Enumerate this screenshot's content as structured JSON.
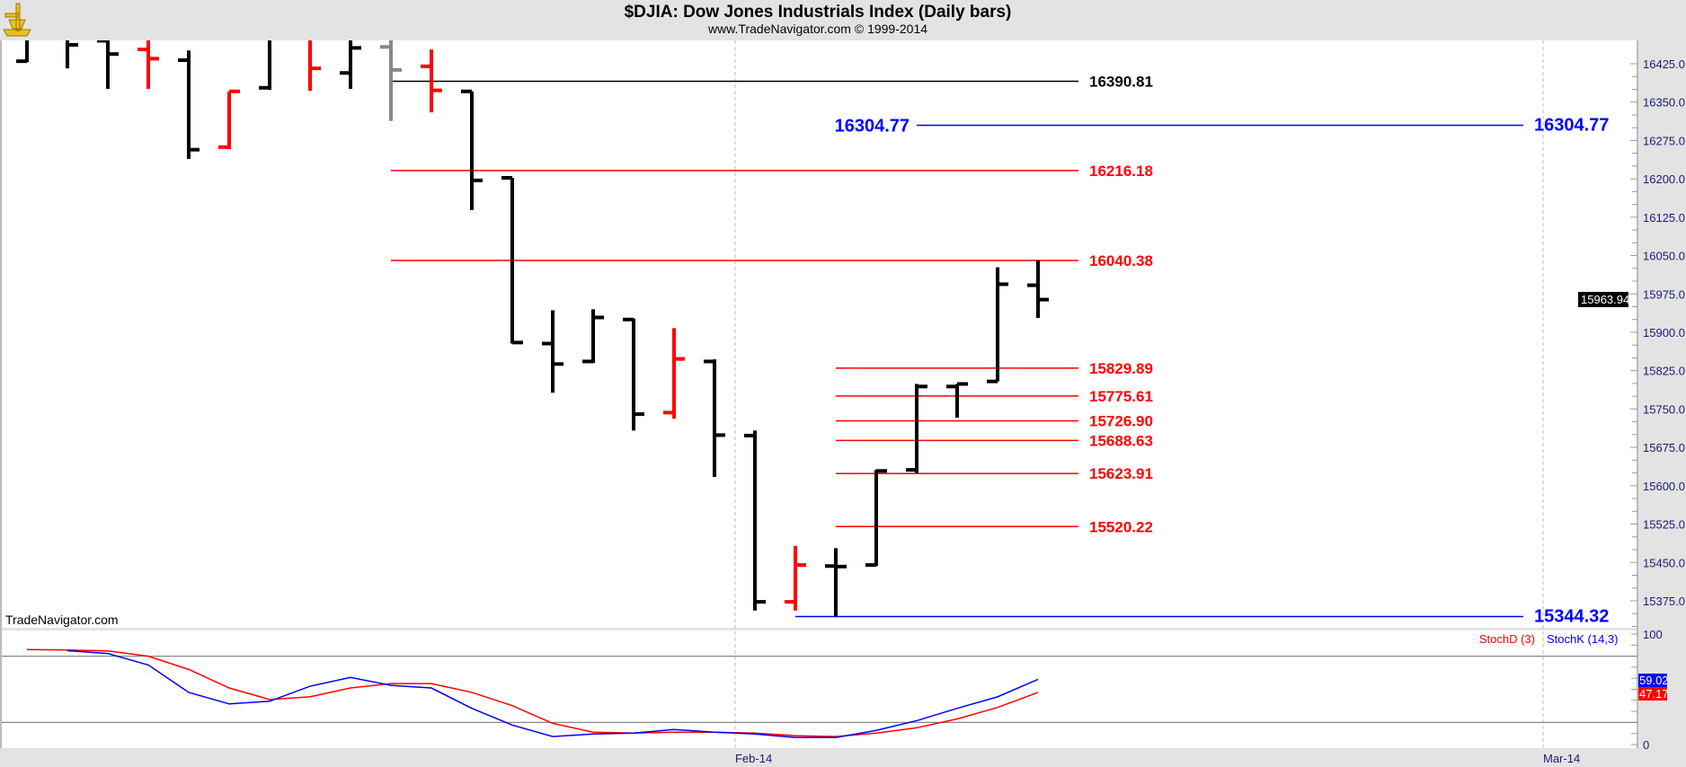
{
  "header": {
    "title": "$DJIA:  Dow Jones Industrials Index  (Daily bars)",
    "subtitle": "www.TradeNavigator.com © 1999-2014",
    "logo_icon": "sextant-icon"
  },
  "watermark": "TradeNavigator.com",
  "colors": {
    "up": "#000000",
    "down": "#ff0000",
    "neutral": "#888888",
    "stochD": "#ff0000",
    "stochK": "#0000ff",
    "level_black": "#000000",
    "level_red": "#ff0000",
    "level_blue": "#0000ff"
  },
  "chart_data": [
    {
      "type": "ohlc",
      "title": "$DJIA:  Dow Jones Industrials Index  (Daily bars)",
      "ylim": [
        15322,
        16471
      ],
      "yticks": [
        "16425.0",
        "16350.0",
        "16275.0",
        "16200.0",
        "16125.0",
        "16050.0",
        "15975.0",
        "15900.0",
        "15825.0",
        "15750.0",
        "15675.0",
        "15600.0",
        "15525.0",
        "15450.0",
        "15375.0"
      ],
      "xticks": [
        "Feb-14",
        "Mar-14"
      ],
      "grid": "vertical dashed at month starts",
      "last_price": "15963.94",
      "bars": [
        {
          "o": 16430,
          "h": 16480,
          "l": 16428,
          "c": 16475,
          "color": "up"
        },
        {
          "o": 16475,
          "h": 16480,
          "l": 16416,
          "c": 16462,
          "color": "up"
        },
        {
          "o": 16470,
          "h": 16480,
          "l": 16376,
          "c": 16444,
          "color": "up"
        },
        {
          "o": 16453,
          "h": 16480,
          "l": 16376,
          "c": 16435,
          "color": "down"
        },
        {
          "o": 16432,
          "h": 16451,
          "l": 16239,
          "c": 16257,
          "color": "up"
        },
        {
          "o": 16262,
          "h": 16371,
          "l": 16258,
          "c": 16371,
          "color": "down"
        },
        {
          "o": 16378,
          "h": 16480,
          "l": 16374,
          "c": 16475,
          "color": "up"
        },
        {
          "o": 16475,
          "h": 16480,
          "l": 16372,
          "c": 16416,
          "color": "down"
        },
        {
          "o": 16407,
          "h": 16480,
          "l": 16376,
          "c": 16456,
          "color": "up"
        },
        {
          "o": 16458,
          "h": 16480,
          "l": 16313,
          "c": 16413,
          "color": "neutral"
        },
        {
          "o": 16420,
          "h": 16453,
          "l": 16330,
          "c": 16373,
          "color": "down"
        },
        {
          "o": 16371,
          "h": 16371,
          "l": 16139,
          "c": 16197,
          "color": "up"
        },
        {
          "o": 16202,
          "h": 16202,
          "l": 15878,
          "c": 15880,
          "color": "up"
        },
        {
          "o": 15878,
          "h": 15943,
          "l": 15782,
          "c": 15838,
          "color": "up"
        },
        {
          "o": 15843,
          "h": 15945,
          "l": 15840,
          "c": 15929,
          "color": "up"
        },
        {
          "o": 15925,
          "h": 15927,
          "l": 15708,
          "c": 15740,
          "color": "up"
        },
        {
          "o": 15743,
          "h": 15908,
          "l": 15731,
          "c": 15848,
          "color": "down"
        },
        {
          "o": 15843,
          "h": 15847,
          "l": 15617,
          "c": 15699,
          "color": "up"
        },
        {
          "o": 15698,
          "h": 15708,
          "l": 15356,
          "c": 15373,
          "color": "up"
        },
        {
          "o": 15373,
          "h": 15482,
          "l": 15356,
          "c": 15445,
          "color": "down"
        },
        {
          "o": 15443,
          "h": 15478,
          "l": 15344.32,
          "c": 15442,
          "color": "up"
        },
        {
          "o": 15445,
          "h": 15631,
          "l": 15443,
          "c": 15629,
          "color": "up"
        },
        {
          "o": 15631,
          "h": 15799,
          "l": 15624,
          "c": 15794,
          "color": "up"
        },
        {
          "o": 15794,
          "h": 15799,
          "l": 15733,
          "c": 15799,
          "color": "up"
        },
        {
          "o": 15804,
          "h": 16027,
          "l": 15804,
          "c": 15994,
          "color": "up"
        },
        {
          "o": 15992,
          "h": 16040.38,
          "l": 15928,
          "c": 15963.94,
          "color": "up"
        }
      ],
      "levels": [
        {
          "value": 16390.81,
          "label": "16390.81",
          "color": "level_black",
          "from_bar": 9,
          "size": "normal"
        },
        {
          "value": 16304.77,
          "label": "16304.77",
          "color": "level_blue",
          "from_bar": 22,
          "size": "big",
          "label_left": true
        },
        {
          "value": 16216.18,
          "label": "16216.18",
          "color": "level_red",
          "from_bar": 9,
          "size": "normal"
        },
        {
          "value": 16040.38,
          "label": "16040.38",
          "color": "level_red",
          "from_bar": 9,
          "size": "normal"
        },
        {
          "value": 15829.89,
          "label": "15829.89",
          "color": "level_red",
          "from_bar": 20,
          "size": "normal"
        },
        {
          "value": 15775.61,
          "label": "15775.61",
          "color": "level_red",
          "from_bar": 20,
          "size": "normal"
        },
        {
          "value": 15726.9,
          "label": "15726.90",
          "color": "level_red",
          "from_bar": 20,
          "size": "normal"
        },
        {
          "value": 15688.63,
          "label": "15688.63",
          "color": "level_red",
          "from_bar": 20,
          "size": "normal"
        },
        {
          "value": 15623.91,
          "label": "15623.91",
          "color": "level_red",
          "from_bar": 20,
          "size": "normal"
        },
        {
          "value": 15520.22,
          "label": "15520.22",
          "color": "level_red",
          "from_bar": 20,
          "size": "normal"
        },
        {
          "value": 15344.32,
          "label": "15344.32",
          "color": "level_blue",
          "from_bar": 19,
          "size": "big"
        }
      ]
    },
    {
      "type": "line",
      "ylim": [
        0,
        100
      ],
      "yticks": [
        "100",
        "0"
      ],
      "reference_lines": [
        80,
        20
      ],
      "legend": "top-right",
      "series": [
        {
          "name": "StochD (3)",
          "color": "stochD",
          "last": "47.17",
          "values": [
            86,
            85.6,
            84.8,
            80,
            68,
            51.2,
            40.8,
            43.2,
            51.2,
            55.2,
            55.2,
            47.2,
            35.2,
            19.2,
            11.2,
            10.4,
            11.2,
            11.2,
            10.4,
            8,
            7.2,
            10.4,
            15.2,
            23.2,
            33.6,
            47.17
          ]
        },
        {
          "name": "StochK (14,3)",
          "color": "stochK",
          "last": "59.02",
          "values": [
            null,
            85,
            82.4,
            72,
            47.2,
            36.8,
            39.2,
            52.8,
            60.8,
            53.6,
            51.2,
            32.8,
            17.6,
            7.2,
            9.6,
            10.4,
            13.6,
            11.2,
            9.6,
            6.4,
            6.4,
            12.8,
            21.6,
            32.8,
            43.2,
            59.02
          ]
        }
      ]
    }
  ]
}
